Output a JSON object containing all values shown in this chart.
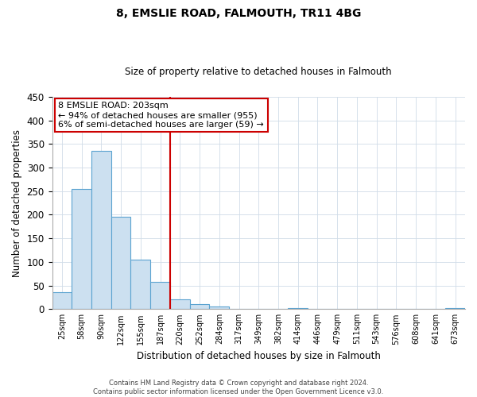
{
  "title": "8, EMSLIE ROAD, FALMOUTH, TR11 4BG",
  "subtitle": "Size of property relative to detached houses in Falmouth",
  "xlabel": "Distribution of detached houses by size in Falmouth",
  "ylabel": "Number of detached properties",
  "bar_labels": [
    "25sqm",
    "58sqm",
    "90sqm",
    "122sqm",
    "155sqm",
    "187sqm",
    "220sqm",
    "252sqm",
    "284sqm",
    "317sqm",
    "349sqm",
    "382sqm",
    "414sqm",
    "446sqm",
    "479sqm",
    "511sqm",
    "543sqm",
    "576sqm",
    "608sqm",
    "641sqm",
    "673sqm"
  ],
  "bar_values": [
    35,
    255,
    335,
    196,
    104,
    57,
    20,
    11,
    5,
    1,
    0,
    0,
    2,
    0,
    0,
    0,
    0,
    0,
    0,
    0,
    2
  ],
  "bar_color": "#cce0f0",
  "bar_edge_color": "#5ba3d0",
  "vline_index": 6,
  "vline_color": "#cc0000",
  "annotation_title": "8 EMSLIE ROAD: 203sqm",
  "annotation_line1": "← 94% of detached houses are smaller (955)",
  "annotation_line2": "6% of semi-detached houses are larger (59) →",
  "annotation_box_color": "#cc0000",
  "ylim": [
    0,
    450
  ],
  "yticks": [
    0,
    50,
    100,
    150,
    200,
    250,
    300,
    350,
    400,
    450
  ],
  "footer_line1": "Contains HM Land Registry data © Crown copyright and database right 2024.",
  "footer_line2": "Contains public sector information licensed under the Open Government Licence v3.0.",
  "bg_color": "#ffffff",
  "grid_color": "#d0dce8"
}
